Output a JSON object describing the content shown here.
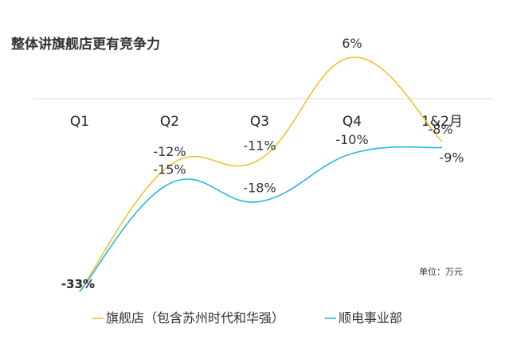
{
  "chart_data": {
    "type": "line",
    "title": "整体讲旗舰店更有竞争力",
    "unit_note": "单位：万元",
    "categories": [
      "Q1",
      "Q2",
      "Q3",
      "Q4",
      "1&2月"
    ],
    "series": [
      {
        "name": "旗舰店（包含苏州时代和华强）",
        "color": "#f2c12e",
        "values": [
          -33,
          -12,
          -11,
          6,
          -8
        ],
        "labels": [
          "-33%",
          "-12%",
          "-11%",
          "6%",
          "-8%"
        ]
      },
      {
        "name": "顺电事业部",
        "color": "#29b6e0",
        "values": [
          -33,
          -15,
          -18,
          -10,
          -9
        ],
        "labels": [
          "-33%",
          "-15%",
          "-18%",
          "-10%",
          "-9%"
        ]
      }
    ],
    "grid": false,
    "legend": "bottom"
  }
}
